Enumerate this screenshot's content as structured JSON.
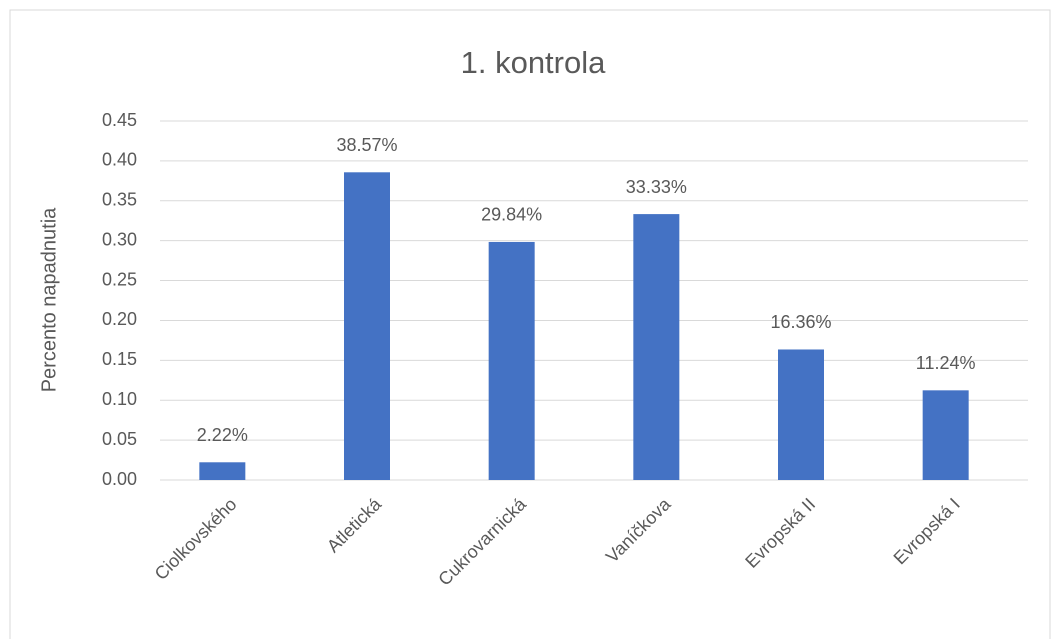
{
  "chart_data": {
    "type": "bar",
    "title": "1. kontrola",
    "y_label": "Percento napadnutia",
    "categories": [
      "Ciolkovského",
      "Atletická",
      "Cukrovarnická",
      "Vaníčkova",
      "Evropská II",
      "Evropská I"
    ],
    "values": [
      0.0222,
      0.3857,
      0.2984,
      0.3333,
      0.1636,
      0.1124
    ],
    "value_labels": [
      "2.22%",
      "38.57%",
      "29.84%",
      "33.33%",
      "16.36%",
      "11.24%"
    ],
    "color": "#4472c4",
    "ylim": [
      0,
      0.45
    ],
    "yticks": [
      {
        "value": 0,
        "label": "0.00"
      },
      0.05,
      {
        "value": 0.1,
        "label": "0.10"
      },
      0.15,
      {
        "value": 0.2,
        "label": "0.20"
      },
      0.25,
      {
        "value": 0.3,
        "label": "0.30"
      },
      0.35,
      {
        "value": 0.4,
        "label": "0.40"
      },
      0.45
    ],
    "grid": true
  }
}
